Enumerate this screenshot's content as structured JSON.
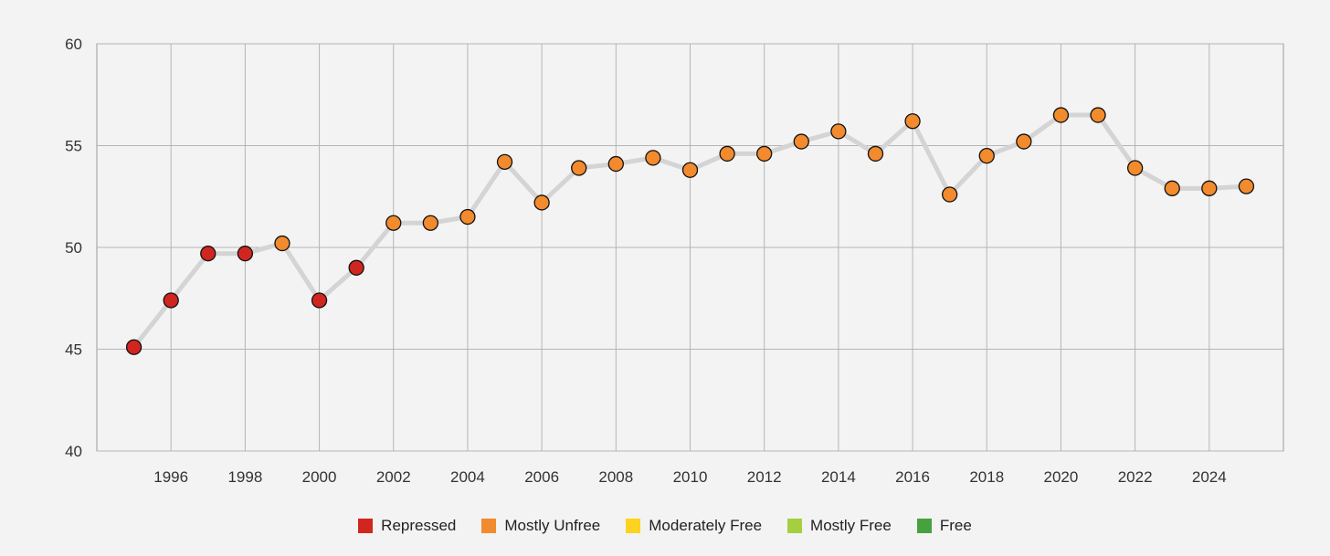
{
  "chart_data": {
    "type": "line",
    "title": "",
    "xlabel": "",
    "ylabel": "",
    "ylim": [
      40,
      60
    ],
    "xlim": [
      1994,
      2026
    ],
    "y_ticks": [
      "40",
      "45",
      "50",
      "55",
      "60"
    ],
    "x_ticks": [
      "1996",
      "1998",
      "2000",
      "2002",
      "2004",
      "2006",
      "2008",
      "2010",
      "2012",
      "2014",
      "2016",
      "2018",
      "2020",
      "2022",
      "2024"
    ],
    "grid": true,
    "legend_position": "bottom-center",
    "line_color": "#d4d4d4",
    "categories": [
      {
        "name": "Repressed",
        "color": "#d0261f"
      },
      {
        "name": "Mostly Unfree",
        "color": "#f28a2e"
      },
      {
        "name": "Moderately Free",
        "color": "#ffd21f"
      },
      {
        "name": "Mostly Free",
        "color": "#a6cf3f"
      },
      {
        "name": "Free",
        "color": "#47a13f"
      }
    ],
    "series": [
      {
        "points": [
          {
            "x": 1995,
            "y": 45.1,
            "category": "Repressed"
          },
          {
            "x": 1996,
            "y": 47.4,
            "category": "Repressed"
          },
          {
            "x": 1997,
            "y": 49.7,
            "category": "Repressed"
          },
          {
            "x": 1998,
            "y": 49.7,
            "category": "Repressed"
          },
          {
            "x": 1999,
            "y": 50.2,
            "category": "Mostly Unfree"
          },
          {
            "x": 2000,
            "y": 47.4,
            "category": "Repressed"
          },
          {
            "x": 2001,
            "y": 49.0,
            "category": "Repressed"
          },
          {
            "x": 2002,
            "y": 51.2,
            "category": "Mostly Unfree"
          },
          {
            "x": 2003,
            "y": 51.2,
            "category": "Mostly Unfree"
          },
          {
            "x": 2004,
            "y": 51.5,
            "category": "Mostly Unfree"
          },
          {
            "x": 2005,
            "y": 54.2,
            "category": "Mostly Unfree"
          },
          {
            "x": 2006,
            "y": 52.2,
            "category": "Mostly Unfree"
          },
          {
            "x": 2007,
            "y": 53.9,
            "category": "Mostly Unfree"
          },
          {
            "x": 2008,
            "y": 54.1,
            "category": "Mostly Unfree"
          },
          {
            "x": 2009,
            "y": 54.4,
            "category": "Mostly Unfree"
          },
          {
            "x": 2010,
            "y": 53.8,
            "category": "Mostly Unfree"
          },
          {
            "x": 2011,
            "y": 54.6,
            "category": "Mostly Unfree"
          },
          {
            "x": 2012,
            "y": 54.6,
            "category": "Mostly Unfree"
          },
          {
            "x": 2013,
            "y": 55.2,
            "category": "Mostly Unfree"
          },
          {
            "x": 2014,
            "y": 55.7,
            "category": "Mostly Unfree"
          },
          {
            "x": 2015,
            "y": 54.6,
            "category": "Mostly Unfree"
          },
          {
            "x": 2016,
            "y": 56.2,
            "category": "Mostly Unfree"
          },
          {
            "x": 2017,
            "y": 52.6,
            "category": "Mostly Unfree"
          },
          {
            "x": 2018,
            "y": 54.5,
            "category": "Mostly Unfree"
          },
          {
            "x": 2019,
            "y": 55.2,
            "category": "Mostly Unfree"
          },
          {
            "x": 2020,
            "y": 56.5,
            "category": "Mostly Unfree"
          },
          {
            "x": 2021,
            "y": 56.5,
            "category": "Mostly Unfree"
          },
          {
            "x": 2022,
            "y": 53.9,
            "category": "Mostly Unfree"
          },
          {
            "x": 2023,
            "y": 52.9,
            "category": "Mostly Unfree"
          },
          {
            "x": 2024,
            "y": 52.9,
            "category": "Mostly Unfree"
          },
          {
            "x": 2025,
            "y": 53.0,
            "category": "Mostly Unfree"
          }
        ]
      }
    ]
  }
}
